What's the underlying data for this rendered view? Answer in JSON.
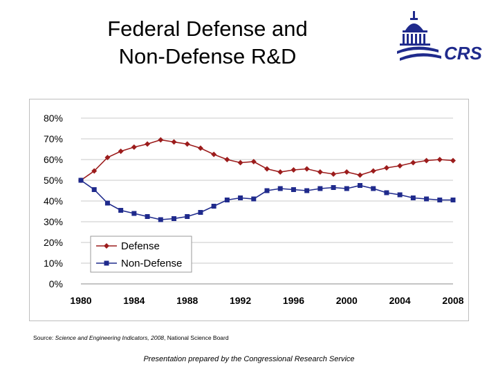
{
  "slide": {
    "title_line1": "Federal Defense and",
    "title_line2": "Non-Defense R&D",
    "logo_text": "CRS",
    "source_label": "Source:",
    "source_text": "Science and Engineering Indicators, 2008",
    "source_org": ", National Science Board",
    "footer": "Presentation prepared by the Congressional Research Service"
  },
  "colors": {
    "defense": "#9c1c1c",
    "non_defense": "#1f2a8c",
    "grid": "#c8c8c8",
    "logo": "#1f2a8c"
  },
  "chart_data": {
    "type": "line",
    "x": [
      1980,
      1981,
      1982,
      1983,
      1984,
      1985,
      1986,
      1987,
      1988,
      1989,
      1990,
      1991,
      1992,
      1993,
      1994,
      1995,
      1996,
      1997,
      1998,
      1999,
      2000,
      2001,
      2002,
      2003,
      2004,
      2005,
      2006,
      2007,
      2008
    ],
    "series": [
      {
        "name": "Defense",
        "values": [
          50,
          54.5,
          61,
          64,
          66,
          67.5,
          69.5,
          68.5,
          67.5,
          65.5,
          62.5,
          60,
          58.5,
          59,
          55.5,
          54,
          55,
          55.5,
          54,
          53,
          54,
          52.5,
          54.5,
          56,
          57,
          58.5,
          59.5,
          60,
          59.5
        ],
        "marker": "diamond"
      },
      {
        "name": "Non-Defense",
        "values": [
          50,
          45.5,
          39,
          35.5,
          34,
          32.5,
          31,
          31.5,
          32.5,
          34.5,
          37.5,
          40.5,
          41.5,
          41,
          45,
          46,
          45.5,
          45,
          46,
          46.5,
          46,
          47.5,
          46,
          44,
          43,
          41.5,
          41,
          40.5,
          40.5
        ],
        "marker": "square"
      }
    ],
    "x_ticks": [
      1980,
      1984,
      1988,
      1992,
      1996,
      2000,
      2004,
      2008
    ],
    "y_ticks": [
      "0%",
      "10%",
      "20%",
      "30%",
      "40%",
      "50%",
      "60%",
      "70%",
      "80%"
    ],
    "ylim": [
      0,
      80
    ],
    "xlim": [
      1980,
      2008
    ],
    "grid": true,
    "legend_placement": "bottom-left"
  }
}
